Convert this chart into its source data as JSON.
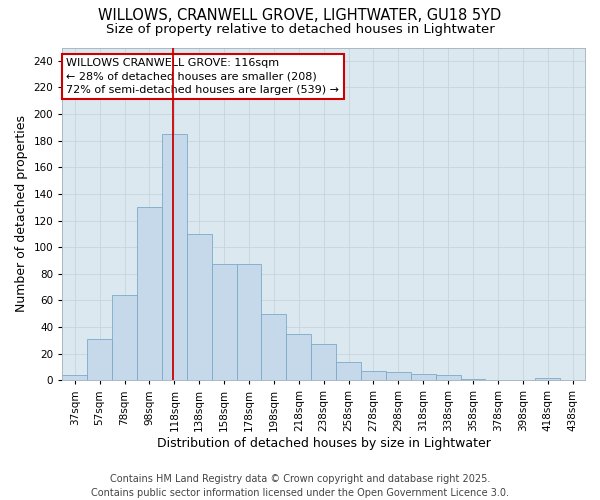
{
  "title1": "WILLOWS, CRANWELL GROVE, LIGHTWATER, GU18 5YD",
  "title2": "Size of property relative to detached houses in Lightwater",
  "xlabel": "Distribution of detached houses by size in Lightwater",
  "ylabel": "Number of detached properties",
  "bar_labels": [
    "37sqm",
    "57sqm",
    "78sqm",
    "98sqm",
    "118sqm",
    "138sqm",
    "158sqm",
    "178sqm",
    "198sqm",
    "218sqm",
    "238sqm",
    "258sqm",
    "278sqm",
    "298sqm",
    "318sqm",
    "338sqm",
    "358sqm",
    "378sqm",
    "398sqm",
    "418sqm",
    "438sqm"
  ],
  "bar_values": [
    4,
    31,
    64,
    130,
    185,
    110,
    87,
    87,
    50,
    35,
    27,
    14,
    7,
    6,
    5,
    4,
    1,
    0,
    0,
    2,
    0
  ],
  "bin_edges": [
    27,
    47,
    67,
    87,
    107,
    127,
    147,
    167,
    187,
    207,
    227,
    247,
    267,
    287,
    307,
    327,
    347,
    367,
    387,
    407,
    427,
    447
  ],
  "bar_color": "#c5d9ea",
  "bar_edge_color": "#7aaac8",
  "vline_x": 116,
  "vline_color": "#cc0000",
  "annotation_text": "WILLOWS CRANWELL GROVE: 116sqm\n← 28% of detached houses are smaller (208)\n72% of semi-detached houses are larger (539) →",
  "annotation_box_color": "#ffffff",
  "annotation_box_edge": "#cc0000",
  "ylim": [
    0,
    250
  ],
  "xlim": [
    27,
    447
  ],
  "yticks": [
    0,
    20,
    40,
    60,
    80,
    100,
    120,
    140,
    160,
    180,
    200,
    220,
    240
  ],
  "grid_color": "#c8d4dc",
  "bg_color": "#dce8f0",
  "fig_bg": "#ffffff",
  "title_fontsize": 10.5,
  "subtitle_fontsize": 9.5,
  "axis_label_fontsize": 9,
  "tick_fontsize": 7.5,
  "annotation_fontsize": 8,
  "footer_fontsize": 7,
  "footer": "Contains HM Land Registry data © Crown copyright and database right 2025.\nContains public sector information licensed under the Open Government Licence 3.0."
}
